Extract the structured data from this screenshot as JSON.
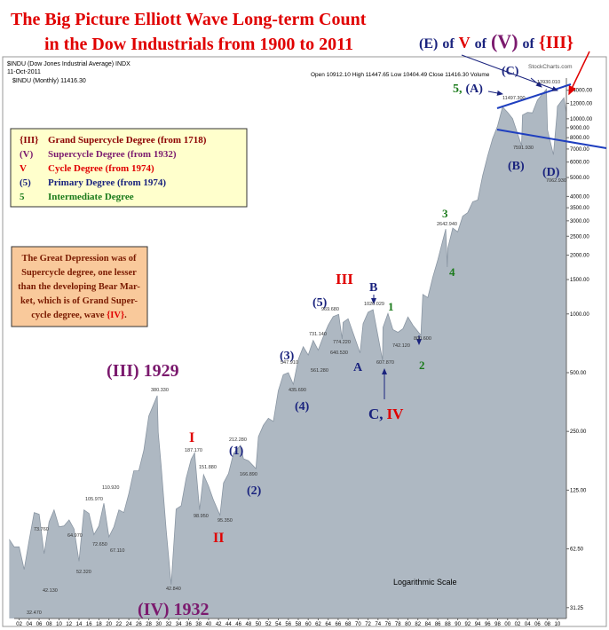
{
  "chart_data": {
    "type": "area",
    "title_lines": [
      "The Big Picture Elliott Wave Long-term Count",
      "in the Dow Industrials from 1900 to 2011"
    ],
    "headline": [
      {
        "text": "(E)",
        "color": "#1a237e"
      },
      {
        "text": "of",
        "color": "#1a237e"
      },
      {
        "text": "V",
        "color": "#e00000"
      },
      {
        "text": "of",
        "color": "#1a237e"
      },
      {
        "text": "(V)",
        "color": "#7b1a6e"
      },
      {
        "text": "of",
        "color": "#1a237e"
      },
      {
        "text": "{III}",
        "color": "#e00000"
      }
    ],
    "header": {
      "symbol": "$INDU (Dow Jones Industrial Average) INDX",
      "date": "11-Oct-2011",
      "quote": "Open 10912.10  High 11447.65  Low 10404.49  Close 11416.30  Volume",
      "series_label": "$INDU (Monthly) 11416.30",
      "source": "StockCharts.com"
    },
    "legend_box": [
      {
        "symbol": "{III}",
        "text": "Grand Supercycle Degree (from 1718)",
        "color": "#8b0000"
      },
      {
        "symbol": "(V)",
        "text": "Supercycle Degree (from 1932)",
        "color": "#7b1a6e"
      },
      {
        "symbol": "V",
        "text": "Cycle Degree (from 1974)",
        "color": "#e00000"
      },
      {
        "symbol": "(5)",
        "text": "Primary Degree (from 1974)",
        "color": "#1a237e"
      },
      {
        "symbol": "5",
        "text": "Intermediate Degree",
        "color": "#1a7a1a"
      }
    ],
    "note_box": {
      "lines": [
        "The Great Depression was of",
        "Supercycle degree, one lesser",
        "than the developing Bear Mar-",
        "ket, which is of Grand Super-"
      ],
      "last_line": [
        {
          "text": "cycle degree, wave ",
          "color": "#7a1a00"
        },
        {
          "text": "{IV}",
          "color": "#e00000"
        },
        {
          "text": ".",
          "color": "#7a1a00"
        }
      ]
    },
    "annotations": [
      [
        {
          "text": "(III) 1929",
          "color": "#7b1a6e"
        }
      ],
      [
        {
          "text": "(IV) 1932",
          "color": "#7b1a6e"
        }
      ],
      [
        {
          "text": "I",
          "color": "#e00000"
        }
      ],
      [
        {
          "text": "II",
          "color": "#e00000"
        }
      ],
      [
        {
          "text": "(1)",
          "color": "#1a237e"
        }
      ],
      [
        {
          "text": "(2)",
          "color": "#1a237e"
        }
      ],
      [
        {
          "text": "(3)",
          "color": "#1a237e"
        }
      ],
      [
        {
          "text": "(4)",
          "color": "#1a237e"
        }
      ],
      [
        {
          "text": "(5)",
          "color": "#1a237e"
        }
      ],
      [
        {
          "text": "III",
          "color": "#e00000"
        }
      ],
      [
        {
          "text": "B",
          "color": "#1a237e"
        }
      ],
      [
        {
          "text": "1",
          "color": "#1a7a1a"
        }
      ],
      [
        {
          "text": "A",
          "color": "#1a237e"
        }
      ],
      [
        {
          "text": "C,",
          "color": "#1a237e"
        },
        {
          "text": "IV",
          "color": "#e00000"
        }
      ],
      [
        {
          "text": "2",
          "color": "#1a7a1a"
        }
      ],
      [
        {
          "text": "3",
          "color": "#1a7a1a"
        }
      ],
      [
        {
          "text": "4",
          "color": "#1a7a1a"
        }
      ],
      [
        {
          "text": "5,",
          "color": "#1a7a1a"
        },
        {
          "text": "(A)",
          "color": "#1a237e"
        }
      ],
      [
        {
          "text": "(B)",
          "color": "#1a237e"
        }
      ],
      [
        {
          "text": "(C)",
          "color": "#1a237e"
        }
      ],
      [
        {
          "text": "(D)",
          "color": "#1a237e"
        }
      ],
      [
        {
          "text": "Logarithmic Scale",
          "color": "#000000"
        }
      ]
    ],
    "price_labels": [
      "32.470",
      "73.760",
      "42.130",
      "64.970",
      "52.320",
      "72.650",
      "105.970",
      "67.110",
      "110.920",
      "380.330",
      "42.840",
      "187.170",
      "151.880",
      "98.950",
      "95.350",
      "212.280",
      "166.890",
      "435.690",
      "547.910",
      "731.140",
      "561.280",
      "640.530",
      "774.220",
      "969.680",
      "1020.029",
      "607.870",
      "742.120",
      "800.600",
      "2642.940",
      "7591.930",
      "11497.300",
      "13930.010",
      "7062.930"
    ],
    "series": [
      {
        "name": "$INDU",
        "color": "#aeb8c2",
        "x": [
          1900,
          1901,
          1902,
          1903,
          1904,
          1905,
          1906,
          1907,
          1908,
          1909,
          1910,
          1911,
          1912,
          1913,
          1914,
          1915,
          1916,
          1917,
          1918,
          1919,
          1920,
          1921,
          1922,
          1923,
          1924,
          1925,
          1926,
          1927,
          1928,
          1929.7,
          1929.9,
          1930.5,
          1931.5,
          1932.5,
          1933.5,
          1934.5,
          1935.5,
          1936.5,
          1937.2,
          1938.2,
          1939,
          1940,
          1941,
          1942.3,
          1943,
          1944,
          1945,
          1946.4,
          1947,
          1948,
          1949.5,
          1950,
          1951,
          1952,
          1953,
          1954,
          1955,
          1956,
          1957,
          1958,
          1959,
          1960,
          1961,
          1962,
          1963,
          1964,
          1965,
          1966.1,
          1966.8,
          1967,
          1968,
          1969,
          1970.4,
          1971,
          1972,
          1973,
          1974.9,
          1975,
          1976,
          1977,
          1978,
          1979,
          1980,
          1981,
          1982.6,
          1983,
          1984,
          1985,
          1986,
          1987.6,
          1987.9,
          1988,
          1989,
          1990,
          1991,
          1992,
          1993,
          1994,
          1995,
          1996,
          1997,
          1998,
          1999,
          2000,
          2001,
          2002.8,
          2003,
          2004,
          2005,
          2006,
          2007.8,
          2008,
          2009.2,
          2009.9,
          2010,
          2011.3,
          2011.75
        ],
        "values": [
          70,
          64,
          64,
          49,
          69,
          96,
          94,
          59,
          86,
          99,
          81,
          82,
          88,
          79,
          54,
          99,
          95,
          74,
          82,
          107,
          72,
          81,
          99,
          96,
          120,
          157,
          157,
          200,
          300,
          381,
          248,
          165,
          78,
          41,
          100,
          104,
          144,
          180,
          194,
          99,
          150,
          131,
          111,
          93,
          136,
          152,
          193,
          212,
          181,
          177,
          161,
          235,
          269,
          292,
          281,
          404,
          488,
          500,
          436,
          584,
          679,
          616,
          731,
          652,
          763,
          874,
          969,
          995,
          744,
          905,
          944,
          800,
          631,
          890,
          1020,
          1051,
          578,
          852,
          1005,
          831,
          805,
          839,
          964,
          875,
          777,
          1259,
          1212,
          1547,
          1896,
          2722,
          1738,
          2169,
          2753,
          2634,
          3169,
          3301,
          3754,
          3834,
          5117,
          6448,
          7908,
          9181,
          11497,
          10787,
          10021,
          7286,
          10454,
          10783,
          10718,
          12463,
          14164,
          8776,
          6547,
          10428,
          11578,
          12810,
          10913
        ]
      }
    ],
    "log_scale": true,
    "grid": false,
    "xlim": [
      1901,
      2011.8
    ],
    "ylim": [
      27.5,
      15500
    ],
    "yticks": [
      {
        "value": 31.25,
        "label": "31.25"
      },
      {
        "value": 62.5,
        "label": "62.50"
      },
      {
        "value": 125,
        "label": "125.00"
      },
      {
        "value": 250,
        "label": "250.00"
      },
      {
        "value": 500,
        "label": "500.00"
      },
      {
        "value": 1000,
        "label": "1000.00"
      },
      {
        "value": 1500,
        "label": "1500.00"
      },
      {
        "value": 2000,
        "label": "2000.00"
      },
      {
        "value": 2500,
        "label": "2500.00"
      },
      {
        "value": 3000,
        "label": "3000.00"
      },
      {
        "value": 3500,
        "label": "3500.00"
      },
      {
        "value": 4000,
        "label": "4000.00"
      },
      {
        "value": 5000,
        "label": "5000.00"
      },
      {
        "value": 6000,
        "label": "6000.00"
      },
      {
        "value": 7000,
        "label": "7000.00"
      },
      {
        "value": 8000,
        "label": "8000.00"
      },
      {
        "value": 9000,
        "label": "9000.00"
      },
      {
        "value": 10000,
        "label": "10000.00"
      },
      {
        "value": 12000,
        "label": "12000.00"
      },
      {
        "value": 14000,
        "label": "14000.00"
      }
    ],
    "xticks": [
      {
        "value": 1902,
        "label": "02"
      },
      {
        "value": 1904,
        "label": "04"
      },
      {
        "value": 1906,
        "label": "06"
      },
      {
        "value": 1908,
        "label": "08"
      },
      {
        "value": 1910,
        "label": "10"
      },
      {
        "value": 1912,
        "label": "12"
      },
      {
        "value": 1914,
        "label": "14"
      },
      {
        "value": 1916,
        "label": "16"
      },
      {
        "value": 1918,
        "label": "18"
      },
      {
        "value": 1920,
        "label": "20"
      },
      {
        "value": 1922,
        "label": "22"
      },
      {
        "value": 1924,
        "label": "24"
      },
      {
        "value": 1926,
        "label": "26"
      },
      {
        "value": 1928,
        "label": "28"
      },
      {
        "value": 1930,
        "label": "30"
      },
      {
        "value": 1932,
        "label": "32"
      },
      {
        "value": 1934,
        "label": "34"
      },
      {
        "value": 1936,
        "label": "36"
      },
      {
        "value": 1938,
        "label": "38"
      },
      {
        "value": 1940,
        "label": "40"
      },
      {
        "value": 1942,
        "label": "42"
      },
      {
        "value": 1944,
        "label": "44"
      },
      {
        "value": 1946,
        "label": "46"
      },
      {
        "value": 1948,
        "label": "48"
      },
      {
        "value": 1950,
        "label": "50"
      },
      {
        "value": 1952,
        "label": "52"
      },
      {
        "value": 1954,
        "label": "54"
      },
      {
        "value": 1956,
        "label": "56"
      },
      {
        "value": 1958,
        "label": "58"
      },
      {
        "value": 1960,
        "label": "60"
      },
      {
        "value": 1962,
        "label": "62"
      },
      {
        "value": 1964,
        "label": "64"
      },
      {
        "value": 1966,
        "label": "66"
      },
      {
        "value": 1968,
        "label": "68"
      },
      {
        "value": 1970,
        "label": "70"
      },
      {
        "value": 1972,
        "label": "72"
      },
      {
        "value": 1974,
        "label": "74"
      },
      {
        "value": 1976,
        "label": "76"
      },
      {
        "value": 1978,
        "label": "78"
      },
      {
        "value": 1980,
        "label": "80"
      },
      {
        "value": 1982,
        "label": "82"
      },
      {
        "value": 1984,
        "label": "84"
      },
      {
        "value": 1986,
        "label": "86"
      },
      {
        "value": 1988,
        "label": "88"
      },
      {
        "value": 1990,
        "label": "90"
      },
      {
        "value": 1992,
        "label": "92"
      },
      {
        "value": 1994,
        "label": "94"
      },
      {
        "value": 1996,
        "label": "96"
      },
      {
        "value": 1998,
        "label": "98"
      },
      {
        "value": 2000,
        "label": "00"
      },
      {
        "value": 2002,
        "label": "02"
      },
      {
        "value": 2004,
        "label": "04"
      },
      {
        "value": 2006,
        "label": "06"
      },
      {
        "value": 2008,
        "label": "08"
      },
      {
        "value": 2010,
        "label": "10"
      }
    ]
  }
}
